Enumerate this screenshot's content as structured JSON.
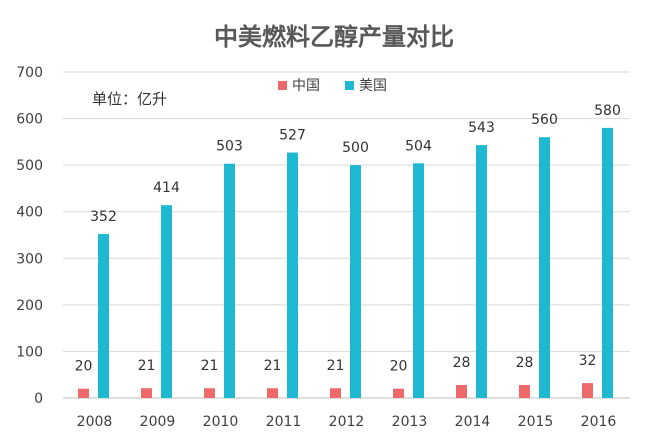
{
  "chart_data": {
    "type": "bar",
    "title": "中美燃料乙醇产量对比",
    "unit_label": "单位：亿升",
    "categories": [
      "2008",
      "2009",
      "2010",
      "2011",
      "2012",
      "2013",
      "2014",
      "2015",
      "2016"
    ],
    "series": [
      {
        "name": "中国",
        "color": "#ee6a6a",
        "values": [
          20,
          21,
          21,
          21,
          21,
          20,
          28,
          28,
          32
        ]
      },
      {
        "name": "美国",
        "color": "#1fb8d1",
        "values": [
          352,
          414,
          503,
          527,
          500,
          504,
          543,
          560,
          580
        ]
      }
    ],
    "ylim": [
      0,
      700
    ],
    "yticks": [
      0,
      100,
      200,
      300,
      400,
      500,
      600,
      700
    ],
    "xlabel": "",
    "ylabel": "",
    "legend": "top-center",
    "grid": true
  }
}
